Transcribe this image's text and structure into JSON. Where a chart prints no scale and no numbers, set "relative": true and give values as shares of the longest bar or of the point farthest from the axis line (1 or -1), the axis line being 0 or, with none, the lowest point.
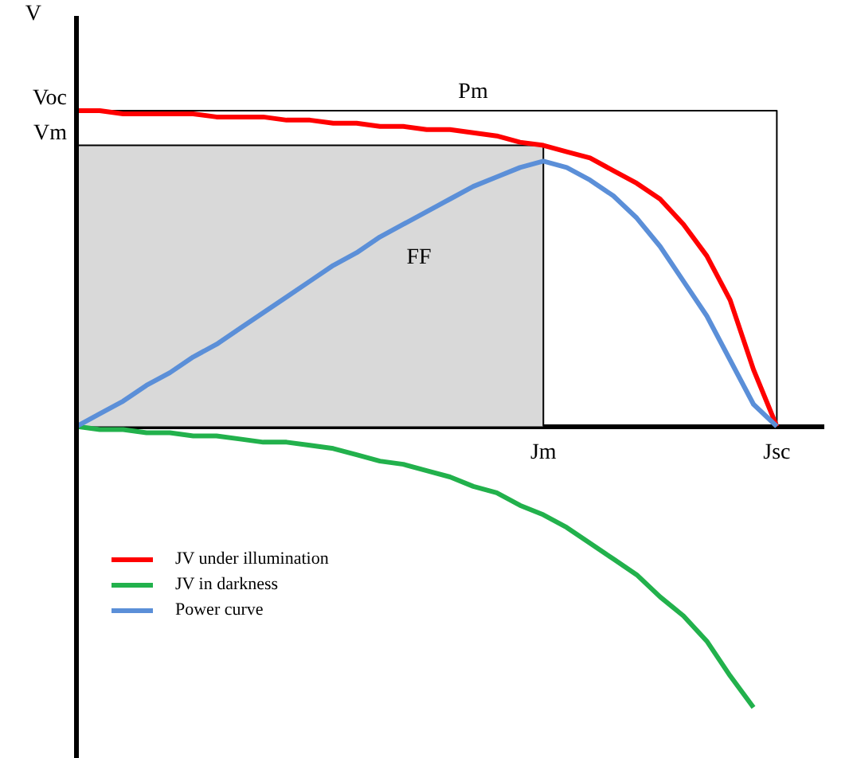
{
  "chart_data": {
    "type": "line",
    "relative": true,
    "ylabel": "V",
    "categories": [
      null,
      null,
      null,
      null,
      null,
      null,
      null,
      null,
      null,
      null,
      null,
      null,
      null,
      null,
      null,
      null,
      null,
      null,
      null,
      null,
      "Jm",
      null,
      null,
      null,
      null,
      null,
      null,
      null,
      null,
      null,
      "Jsc",
      null,
      null
    ],
    "series": [
      {
        "type": "area",
        "color": "#d9d9d9",
        "values": [
          0.89,
          0.89,
          0.89,
          0.89,
          0.89,
          0.89,
          0.89,
          0.89,
          0.89,
          0.89,
          0.89,
          0.89,
          0.89,
          0.89,
          0.89,
          0.89,
          0.89,
          0.89,
          0.89,
          0.89,
          0,
          null,
          null,
          null,
          null,
          null,
          null,
          null,
          null,
          null,
          null,
          null,
          null
        ]
      },
      {
        "type": "step",
        "color": "#000000",
        "values": [
          1,
          1,
          1,
          1,
          1,
          1,
          1,
          1,
          1,
          1,
          1,
          1,
          1,
          1,
          1,
          1,
          1,
          1,
          1,
          1,
          1,
          1,
          1,
          1,
          1,
          1,
          1,
          1,
          1,
          1,
          0,
          null,
          null
        ]
      },
      {
        "name": "JV under illumination",
        "color": "#ff0000",
        "values": [
          1,
          1,
          0.99,
          0.99,
          0.99,
          0.99,
          0.98,
          0.98,
          0.98,
          0.97,
          0.97,
          0.96,
          0.96,
          0.95,
          0.95,
          0.94,
          0.94,
          0.93,
          0.92,
          0.9,
          0.89,
          0.87,
          0.85,
          0.81,
          0.77,
          0.72,
          0.64,
          0.54,
          0.4,
          0.18,
          0,
          null,
          null
        ]
      },
      {
        "name": "JV in darkness",
        "color": "#22b14c",
        "values": [
          0,
          -0.01,
          -0.01,
          -0.02,
          -0.02,
          -0.03,
          -0.03,
          -0.04,
          -0.05,
          -0.05,
          -0.06,
          -0.07,
          -0.09,
          -0.11,
          -0.12,
          -0.14,
          -0.16,
          -0.19,
          -0.21,
          -0.25,
          -0.28,
          -0.32,
          -0.37,
          -0.42,
          -0.47,
          -0.54,
          -0.6,
          -0.68,
          -0.79,
          -0.89,
          null,
          null,
          null
        ]
      },
      {
        "name": "Power curve",
        "color": "#5b8fd8",
        "values": [
          0,
          0.04,
          0.08,
          0.13,
          0.17,
          0.22,
          0.26,
          0.31,
          0.36,
          0.41,
          0.46,
          0.51,
          0.55,
          0.6,
          0.64,
          0.68,
          0.72,
          0.76,
          0.79,
          0.82,
          0.84,
          0.82,
          0.78,
          0.73,
          0.66,
          0.57,
          0.46,
          0.35,
          0.21,
          0.07,
          0,
          null,
          null
        ]
      }
    ],
    "annotations": [
      "Voc",
      "Vm",
      "Pm",
      "FF"
    ],
    "legend": "bottom left",
    "grid": false,
    "marker": "none",
    "line_style": "solid"
  }
}
